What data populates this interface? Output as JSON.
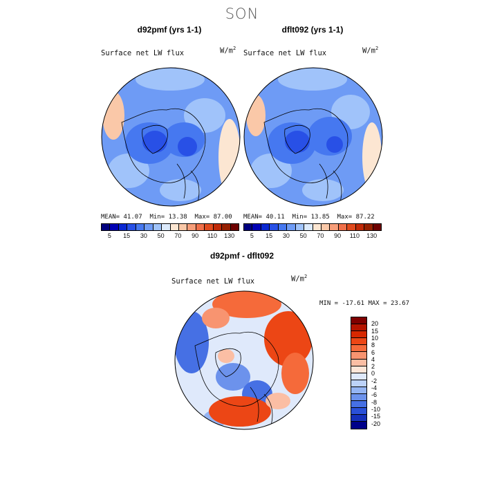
{
  "page": {
    "title": "SON"
  },
  "panels": [
    {
      "title": "d92pmf (yrs 1-1)",
      "variable": "Surface net LW flux",
      "units_base": "W/m",
      "units_exp": "2",
      "mean_label": "MEAN=",
      "mean": "41.07",
      "min_label": "Min=",
      "min": "13.38",
      "max_label": "Max=",
      "max": "87.00"
    },
    {
      "title": "dflt092 (yrs 1-1)",
      "variable": "Surface net LW flux",
      "units_base": "W/m",
      "units_exp": "2",
      "mean_label": "MEAN=",
      "mean": "40.11",
      "min_label": "Min=",
      "min": "13.85",
      "max_label": "Max=",
      "max": "87.22"
    }
  ],
  "colorbar_abs": {
    "colors": [
      "#00007f",
      "#0000b4",
      "#0a28d2",
      "#2850e6",
      "#4678f0",
      "#6e9bf5",
      "#a0c3fa",
      "#dceafc",
      "#fce6d2",
      "#fac8a8",
      "#f79e7a",
      "#f0704a",
      "#e04a1e",
      "#c02a08",
      "#962000",
      "#6e0000"
    ],
    "labels": [
      "5",
      "15",
      "30",
      "50",
      "70",
      "90",
      "110",
      "130"
    ]
  },
  "diff_panel": {
    "title": "d92pmf - dflt092",
    "variable": "Surface net LW flux",
    "units_base": "W/m",
    "units_exp": "2",
    "stats_text": "MIN = -17.61 MAX =  23.67"
  },
  "colorbar_diff": {
    "colors": [
      "#7f0000",
      "#b41400",
      "#d72800",
      "#ec4615",
      "#f56a3a",
      "#f89470",
      "#fbbea4",
      "#fde6d8",
      "#dfe9fb",
      "#bcd2f9",
      "#94b4f3",
      "#6c92ec",
      "#4670e4",
      "#2a50d8",
      "#1530bb",
      "#00008a"
    ],
    "labels": [
      "20",
      "15",
      "10",
      "8",
      "6",
      "4",
      "2",
      "0",
      "-2",
      "-4",
      "-6",
      "-8",
      "-10",
      "-15",
      "-20"
    ]
  },
  "chart_data": {
    "type": "heatmap",
    "projection": "north-polar-stereographic",
    "season": "SON",
    "maps": [
      {
        "name": "d92pmf (yrs 1-1)",
        "field": "Surface net LW flux",
        "units": "W/m^2",
        "mean": 41.07,
        "min": 13.38,
        "max": 87.0,
        "levels": [
          5,
          15,
          30,
          50,
          70,
          90,
          110,
          130
        ]
      },
      {
        "name": "dflt092 (yrs 1-1)",
        "field": "Surface net LW flux",
        "units": "W/m^2",
        "mean": 40.11,
        "min": 13.85,
        "max": 87.22,
        "levels": [
          5,
          15,
          30,
          50,
          70,
          90,
          110,
          130
        ]
      },
      {
        "name": "d92pmf - dflt092",
        "field": "Surface net LW flux",
        "units": "W/m^2",
        "min": -17.61,
        "max": 23.67,
        "levels": [
          -20,
          -15,
          -10,
          -8,
          -6,
          -4,
          -2,
          0,
          2,
          4,
          6,
          8,
          10,
          15,
          20
        ]
      }
    ]
  }
}
